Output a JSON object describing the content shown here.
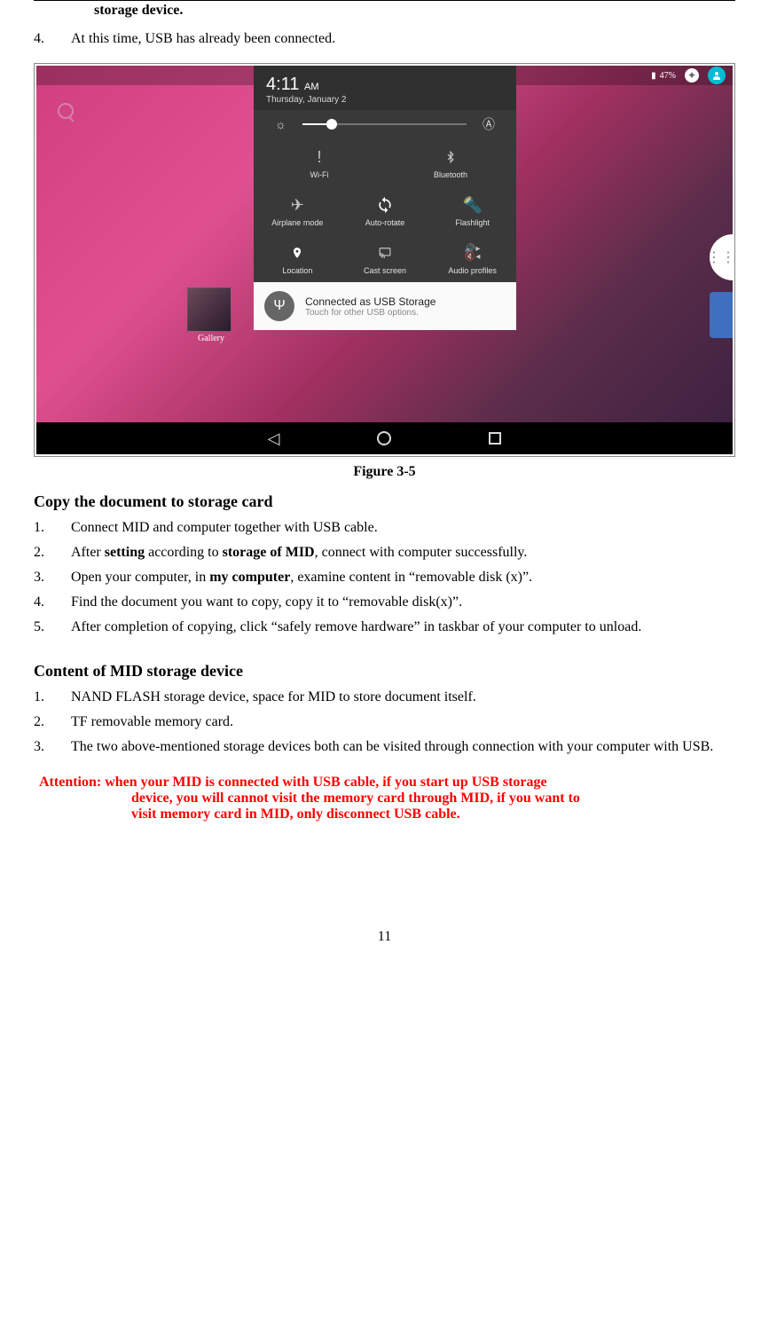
{
  "topLine": "storage device.",
  "preList": {
    "n": "4.",
    "text": "At this time, USB has already been connected."
  },
  "screenshot": {
    "battery_pct": "47%",
    "time": "4:11",
    "ampm": "AM",
    "date": "Thursday, January 2",
    "tiles": {
      "wifi": "Wi-Fi",
      "bluetooth": "Bluetooth",
      "airplane": "Airplane mode",
      "rotate": "Auto-rotate",
      "flashlight": "Flashlight",
      "location": "Location",
      "cast": "Cast screen",
      "audio": "Audio profiles"
    },
    "notif_title": "Connected as USB Storage",
    "notif_sub": "Touch for other USB options.",
    "gallery": "Gallery"
  },
  "figCaption": "Figure 3-5",
  "section1": {
    "heading": "Copy the document to storage card",
    "items": [
      {
        "n": "1.",
        "html": "Connect MID and computer together with USB cable."
      },
      {
        "n": "2.",
        "html": "After <b>setting</b> according to <b>storage of MID</b>, connect with computer successfully."
      },
      {
        "n": "3.",
        "html": "Open your computer, in <b>my computer</b>, examine content in “removable disk (x)”."
      },
      {
        "n": "4.",
        "html": "Find the document you want to copy, copy it to “removable disk(x)”."
      },
      {
        "n": "5.",
        "html": "After completion of copying, click “safely remove hardware” in taskbar of your computer to unload."
      }
    ]
  },
  "section2": {
    "heading": "Content of MID storage device",
    "items": [
      {
        "n": "1.",
        "html": "NAND FLASH storage device, space for MID to store document itself."
      },
      {
        "n": "2.",
        "html": "TF removable memory card."
      },
      {
        "n": "3.",
        "html": "The two above-mentioned storage devices both can be visited through connection with your computer with USB."
      }
    ]
  },
  "attention": {
    "line1": "Attention: when your MID is connected with USB cable, if you start up USB storage",
    "line2": "device, you will cannot visit the memory card through MID, if you want to",
    "line3": "visit memory card in MID, only disconnect USB cable."
  },
  "pageNum": "11"
}
